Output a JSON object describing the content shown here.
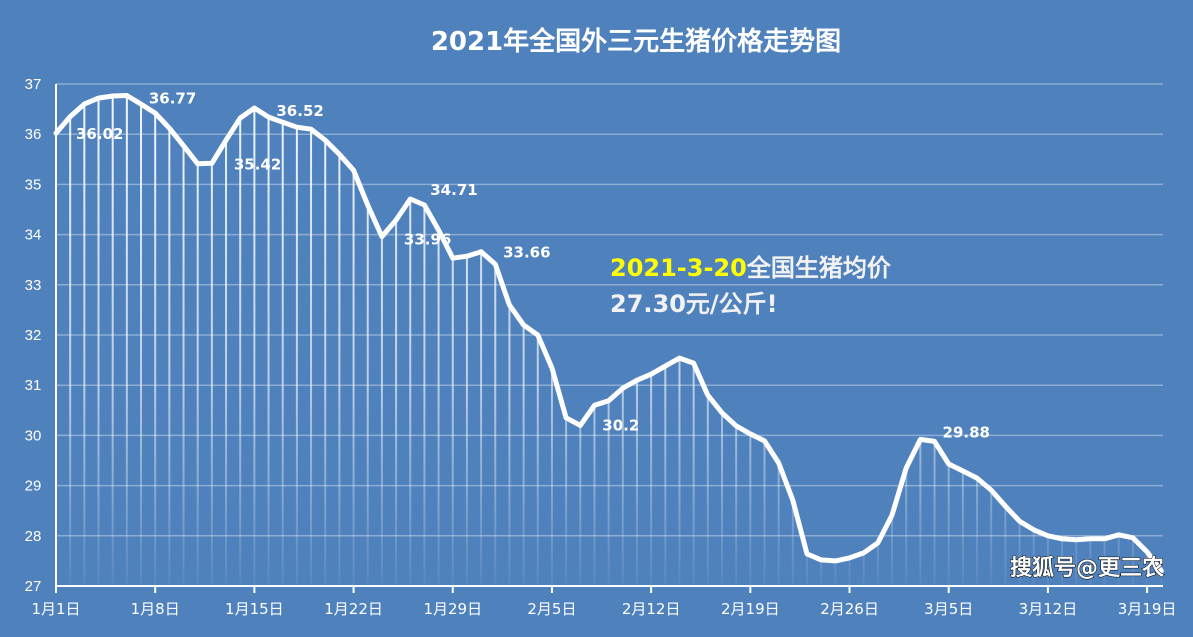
{
  "chart_data": {
    "type": "line",
    "title": "2021年全国外三元生猪价格走势图",
    "xlabel": "",
    "ylabel": "",
    "ylim": [
      27,
      37
    ],
    "yticks": [
      27,
      28,
      29,
      30,
      31,
      32,
      33,
      34,
      35,
      36,
      37
    ],
    "grid": true,
    "x_start": "1月1日",
    "x_end": "3月20日",
    "xtick_labels": [
      "1月1日",
      "1月8日",
      "1月15日",
      "1月22日",
      "1月29日",
      "2月5日",
      "2月12日",
      "2月19日",
      "2月26日",
      "3月5日",
      "3月12日",
      "3月19日"
    ],
    "values": [
      36.02,
      36.35,
      36.6,
      36.72,
      36.76,
      36.77,
      36.6,
      36.42,
      36.12,
      35.77,
      35.41,
      35.42,
      35.88,
      36.32,
      36.52,
      36.34,
      36.24,
      36.14,
      36.1,
      35.88,
      35.6,
      35.28,
      34.59,
      33.96,
      34.29,
      34.71,
      34.59,
      34.09,
      33.53,
      33.57,
      33.66,
      33.41,
      32.6,
      32.2,
      32.0,
      31.34,
      30.35,
      30.2,
      30.6,
      30.69,
      30.94,
      31.1,
      31.22,
      31.38,
      31.54,
      31.44,
      30.8,
      30.45,
      30.19,
      30.03,
      29.89,
      29.45,
      28.71,
      27.64,
      27.52,
      27.5,
      27.56,
      27.66,
      27.86,
      28.41,
      29.35,
      29.92,
      29.88,
      29.43,
      29.29,
      29.15,
      28.91,
      28.59,
      28.29,
      28.12,
      28.0,
      27.94,
      27.92,
      27.94,
      27.94,
      28.02,
      27.96,
      27.68,
      27.3
    ],
    "data_labels": [
      {
        "index": 0,
        "text": "36.02"
      },
      {
        "index": 5,
        "text": "36.77"
      },
      {
        "index": 11,
        "text": "35.42"
      },
      {
        "index": 14,
        "text": "36.52"
      },
      {
        "index": 23,
        "text": "33.96"
      },
      {
        "index": 25,
        "text": "34.71"
      },
      {
        "index": 30,
        "text": "33.66"
      },
      {
        "index": 37,
        "text": "30.2"
      },
      {
        "index": 62,
        "text": "29.88"
      }
    ],
    "annotation": {
      "date": "2021-3-20",
      "text1": "全国生猪均价",
      "text2": "27.30元/公斤!"
    },
    "colors": {
      "background": "#4f81bd",
      "line": "#ffffff",
      "annotation_date": "#ffff00"
    }
  },
  "watermark": "搜狐号@更三农"
}
